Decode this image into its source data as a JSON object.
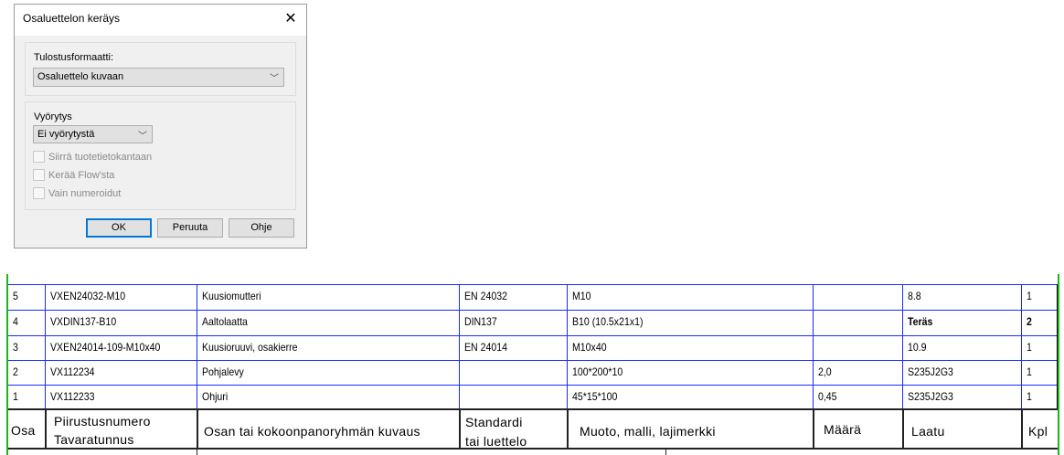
{
  "dialog": {
    "title": "Osaluettelon keräys",
    "output_format_label": "Tulostusformaatti:",
    "output_format_value": "Osaluettelo kuvaan",
    "rollup_label": "Vyörytys",
    "rollup_value": "Ei vyörytystä",
    "checkboxes": [
      {
        "label": "Siirrä tuotetietokantaan",
        "checked": false,
        "enabled": false
      },
      {
        "label": "Kerää Flow'sta",
        "checked": false,
        "enabled": false
      },
      {
        "label": "Vain numeroidut",
        "checked": false,
        "enabled": false
      }
    ],
    "ok_label": "OK",
    "cancel_label": "Peruuta",
    "help_label": "Ohje"
  },
  "parts_list": {
    "rows": [
      {
        "osa": "5",
        "tunnus": "VXEN24032-M10",
        "kuvaus": "Kuusiomutteri",
        "standardi": "EN 24032",
        "muoto": "M10",
        "maara": "",
        "laatu": "8.8",
        "kpl": "1"
      },
      {
        "osa": "4",
        "tunnus": "VXDIN137-B10",
        "kuvaus": "Aaltolaatta",
        "standardi": "DIN137",
        "muoto": "B10 (10.5x21x1)",
        "maara": "",
        "laatu": "Teräs",
        "kpl": "2"
      },
      {
        "osa": "3",
        "tunnus": "VXEN24014-109-M10x40",
        "kuvaus": "Kuusioruuvi, osakierre",
        "standardi": "EN 24014",
        "muoto": "M10x40",
        "maara": "",
        "laatu": "10.9",
        "kpl": "1"
      },
      {
        "osa": "2",
        "tunnus": "VX112234",
        "kuvaus": "Pohjalevy",
        "standardi": "",
        "muoto": "100*200*10",
        "maara": "2,0",
        "laatu": "S235J2G3",
        "kpl": "1"
      },
      {
        "osa": "1",
        "tunnus": "VX112233",
        "kuvaus": "Ohjuri",
        "standardi": "",
        "muoto": "45*15*100",
        "maara": "0,45",
        "laatu": "S235J2G3",
        "kpl": "1"
      }
    ],
    "header": {
      "osa": "Osa",
      "tunnus_1": "Piirustusnumero",
      "tunnus_2": "Tavaratunnus",
      "kuvaus": "Osan tai kokoonpanoryhmän kuvaus",
      "standardi_1": "Standardi",
      "standardi_2": "tai luettelo",
      "muoto": "Muoto, malli, lajimerkki",
      "maara": "Määrä",
      "laatu": "Laatu",
      "kpl": "Kpl"
    }
  }
}
